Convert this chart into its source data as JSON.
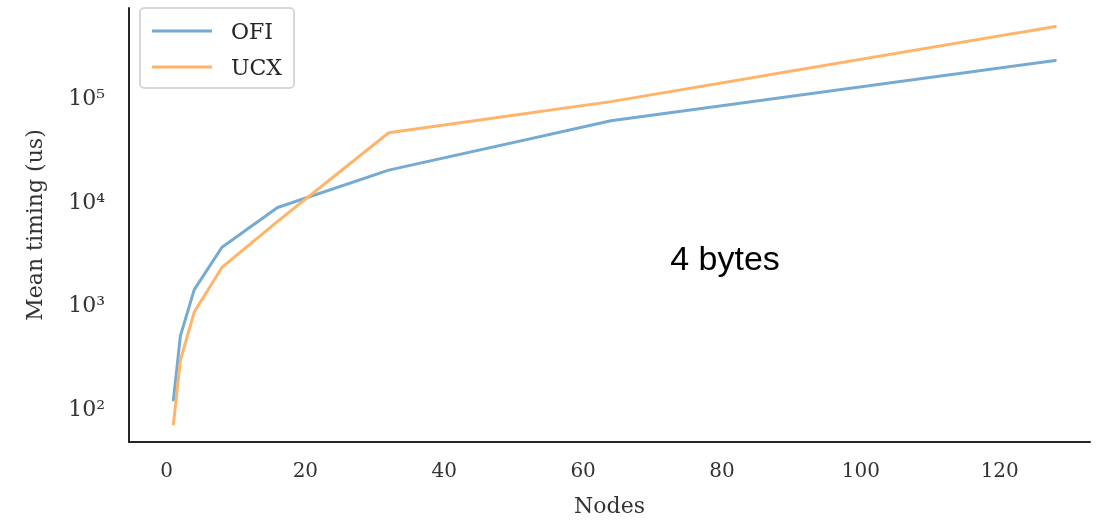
{
  "chart_data": {
    "type": "line",
    "xlabel": "Nodes",
    "ylabel": "Mean timing (us)",
    "x": [
      1,
      2,
      4,
      8,
      16,
      32,
      64,
      128
    ],
    "series": [
      {
        "name": "OFI",
        "color": "#75aad3",
        "values": [
          120,
          500,
          1400,
          3600,
          8700,
          20000,
          60000,
          230000
        ]
      },
      {
        "name": "UCX",
        "color": "#ffb46a",
        "values": [
          70,
          290,
          850,
          2300,
          6400,
          46000,
          92000,
          490000
        ]
      }
    ],
    "xlim": [
      -5.4,
      133
    ],
    "xticks": [
      0,
      20,
      40,
      60,
      80,
      100,
      120
    ],
    "ylim": [
      47,
      740000
    ],
    "yticks": [
      {
        "value": 100,
        "label": "10²"
      },
      {
        "value": 1000,
        "label": "10³"
      },
      {
        "value": 10000,
        "label": "10⁴"
      },
      {
        "value": 100000,
        "label": "10⁵"
      }
    ],
    "log": "y",
    "grid": false,
    "legend": "top left",
    "marker": "none",
    "line_style": "solid",
    "annotations": [
      "4 bytes"
    ]
  }
}
